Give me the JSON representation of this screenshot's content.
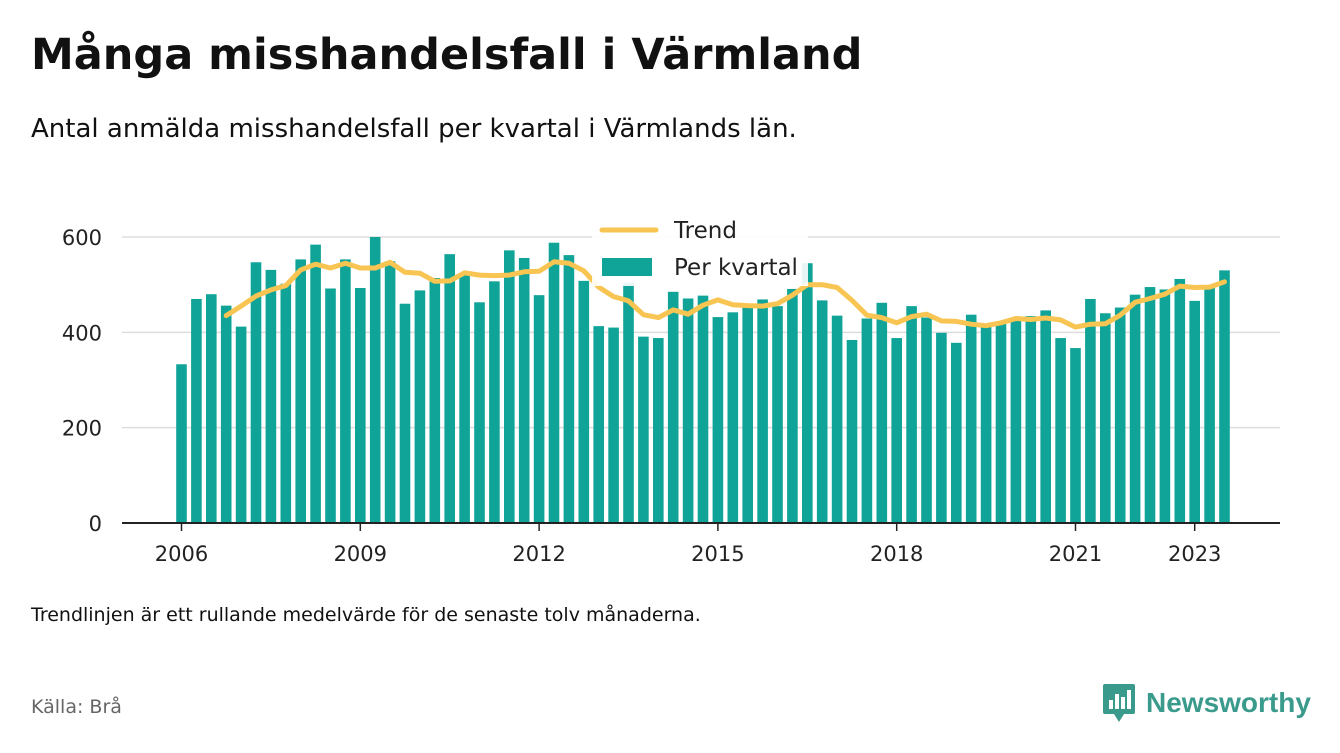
{
  "title": "Många misshandelsfall i Värmland",
  "subtitle": "Antal anmälda misshandelsfall per kvartal i Värmlands län.",
  "note": "Trendlinjen är ett rullande medelvärde för de senaste tolv månaderna.",
  "source": "Källa: Brå",
  "brand": "Newsworthy",
  "colors": {
    "bars": "#0fa497",
    "trend": "#f8c452",
    "grid": "#dddddd",
    "axis": "#222222",
    "brand": "#3a9a8c"
  },
  "chart_data": {
    "type": "bar",
    "x_unit": "quarter",
    "ylim": [
      0,
      600
    ],
    "yticks": [
      0,
      200,
      400,
      600
    ],
    "xticks": [
      2006,
      2009,
      2012,
      2015,
      2018,
      2021,
      2023
    ],
    "grid": true,
    "legend_position": "top-center",
    "series": [
      {
        "name": "Per kvartal",
        "kind": "bar",
        "start": "2006 Q1",
        "values": [
          333,
          470,
          480,
          456,
          412,
          547,
          531,
          502,
          553,
          584,
          492,
          553,
          493,
          600,
          549,
          460,
          488,
          514,
          564,
          521,
          463,
          507,
          572,
          556,
          478,
          588,
          562,
          508,
          413,
          410,
          504,
          391,
          388,
          485,
          471,
          477,
          432,
          442,
          455,
          469,
          455,
          491,
          545,
          467,
          435,
          384,
          429,
          462,
          388,
          455,
          431,
          399,
          378,
          437,
          412,
          420,
          427,
          434,
          446,
          388,
          367,
          470,
          440,
          452,
          479,
          495,
          490,
          512,
          466,
          499,
          530
        ]
      },
      {
        "name": "Trend",
        "kind": "line",
        "start": "2006 Q4",
        "values": [
          435,
          455,
          476,
          489,
          498,
          531,
          543,
          535,
          545,
          535,
          535,
          547,
          526,
          524,
          507,
          508,
          525,
          520,
          519,
          520,
          527,
          528,
          548,
          545,
          529,
          495,
          475,
          466,
          437,
          431,
          447,
          438,
          457,
          468,
          458,
          456,
          455,
          460,
          478,
          500,
          500,
          494,
          467,
          436,
          431,
          420,
          433,
          438,
          424,
          423,
          417,
          414,
          420,
          429,
          427,
          430,
          426,
          411,
          417,
          418,
          436,
          463,
          471,
          480,
          497,
          494,
          495,
          506
        ]
      }
    ]
  }
}
